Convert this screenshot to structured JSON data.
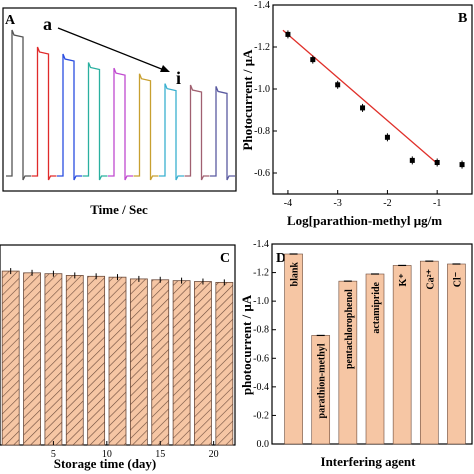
{
  "panels": {
    "A": {
      "letter": "A",
      "start_label": "a",
      "end_label": "i",
      "xlabel": "Time / Sec"
    },
    "B": {
      "letter": "B",
      "ylabel": "Photocurrent / μA",
      "xlabel": "Log[parathion-methyl μg/m"
    },
    "C": {
      "letter": "C",
      "xlabel": "Storage time (day)"
    },
    "D": {
      "letter": "D",
      "ylabel": "photocurrent / μA",
      "xlabel": "Interfering agent"
    }
  },
  "colors": {
    "bar_fill": "#f6c6a4",
    "bar_edge": "#6b4a3a",
    "fit_line": "#e0302a",
    "traces": [
      "#555555",
      "#e02a2a",
      "#2a4de0",
      "#2ab0a0",
      "#c04ad0",
      "#c8a030",
      "#3ab0d0",
      "#a06070",
      "#5a5aa0"
    ]
  },
  "chart_data": [
    {
      "panel": "A",
      "type": "line",
      "title": "",
      "xlabel": "Time / Sec",
      "ylabel": "",
      "series_labels": [
        "a",
        "i"
      ],
      "traces": 9,
      "on_levels": [
        1.0,
        0.88,
        0.83,
        0.77,
        0.73,
        0.69,
        0.62,
        0.61,
        0.6
      ],
      "ylim": [
        0,
        1.05
      ]
    },
    {
      "panel": "B",
      "type": "scatter",
      "title": "",
      "xlabel": "Log[parathion-methyl μg/m",
      "ylabel": "Photocurrent / μA",
      "x": [
        -4,
        -3.5,
        -3,
        -2.5,
        -2,
        -1.5,
        -1,
        -0.5
      ],
      "y": [
        -1.26,
        -1.14,
        -1.02,
        -0.91,
        -0.77,
        -0.66,
        -0.65,
        -0.64
      ],
      "fit": {
        "x": [
          -4.1,
          -1.0
        ],
        "y": [
          -1.28,
          -0.645
        ]
      },
      "xlim": [
        -4.3,
        -0.3
      ],
      "ylim": [
        -1.4,
        -0.5
      ],
      "xticks": [
        -4,
        -3,
        -2,
        -1
      ],
      "xtick_labels": [
        "-4",
        "-3",
        "-2",
        "-1"
      ],
      "yticks": [
        -1.4,
        -1.2,
        -1.0,
        -0.8,
        -0.6
      ],
      "ytick_labels": [
        "-1.4",
        "-1.2",
        "-1.0",
        "-0.8",
        "-0.6"
      ]
    },
    {
      "panel": "C",
      "type": "bar",
      "title": "",
      "xlabel": "Storage time (day)",
      "ylabel": "",
      "x": [
        1,
        3,
        5,
        7,
        9,
        11,
        13,
        15,
        17,
        19,
        21
      ],
      "values": [
        1.0,
        0.99,
        0.985,
        0.975,
        0.97,
        0.965,
        0.955,
        0.95,
        0.945,
        0.94,
        0.935
      ],
      "xlim": [
        0,
        22
      ],
      "ylim": [
        0,
        1.15
      ],
      "xticks": [
        5,
        10,
        15,
        20
      ],
      "xtick_labels": [
        "5",
        "10",
        "15",
        "20"
      ]
    },
    {
      "panel": "D",
      "type": "bar",
      "title": "",
      "xlabel": "Interfering agent",
      "ylabel": "photocurrent / μA",
      "categories": [
        "blank",
        "parathion-methyl",
        "pentachlorophenol",
        "actamipride",
        "K⁺",
        "Ca²⁺",
        "Cl⁻"
      ],
      "values": [
        -1.33,
        -0.76,
        -1.14,
        -1.19,
        -1.25,
        -1.28,
        -1.26
      ],
      "ylim": [
        -1.4,
        0
      ],
      "yticks": [
        -1.4,
        -1.2,
        -1.0,
        -0.8,
        -0.6,
        -0.4,
        -0.2,
        0.0
      ],
      "ytick_labels": [
        "-1.4",
        "-1.2",
        "-1.0",
        "-0.8",
        "-0.6",
        "-0.4",
        "-0.2",
        "0.0"
      ]
    }
  ]
}
